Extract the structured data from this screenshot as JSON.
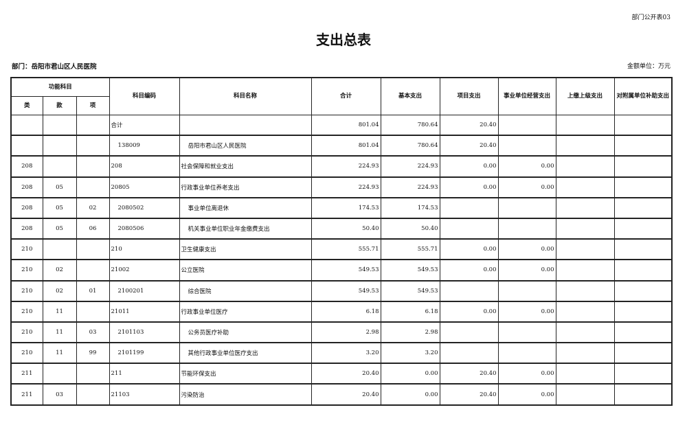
{
  "form_number": "部门公开表03",
  "title": "支出总表",
  "department": "部门：岳阳市君山区人民医院",
  "unit": "金额单位：万元",
  "headers": {
    "function_subject": "功能科目",
    "lei": "类",
    "kuan": "款",
    "xiang": "项",
    "code": "科目编码",
    "name": "科目名称",
    "total": "合计",
    "basic": "基本支出",
    "project": "项目支出",
    "business": "事业单位经营支出",
    "upper": "上缴上级支出",
    "subsidy": "对附属单位补助支出"
  },
  "rows": [
    {
      "lei": "",
      "kuan": "",
      "xiang": "",
      "code": "合计",
      "name": "",
      "total": "801.04",
      "basic": "780.64",
      "project": "20.40",
      "business": "",
      "upper": "",
      "subsidy": "",
      "level": 0
    },
    {
      "lei": "",
      "kuan": "",
      "xiang": "",
      "code": "138009",
      "name": "岳阳市君山区人民医院",
      "total": "801.04",
      "basic": "780.64",
      "project": "20.40",
      "business": "",
      "upper": "",
      "subsidy": "",
      "level": 1
    },
    {
      "lei": "208",
      "kuan": "",
      "xiang": "",
      "code": "208",
      "name": "社会保障和就业支出",
      "total": "224.93",
      "basic": "224.93",
      "project": "0.00",
      "business": "0.00",
      "upper": "",
      "subsidy": "",
      "level": 0
    },
    {
      "lei": "208",
      "kuan": "05",
      "xiang": "",
      "code": "20805",
      "name": "行政事业单位养老支出",
      "total": "224.93",
      "basic": "224.93",
      "project": "0.00",
      "business": "0.00",
      "upper": "",
      "subsidy": "",
      "level": 0
    },
    {
      "lei": "208",
      "kuan": "05",
      "xiang": "02",
      "code": "2080502",
      "name": "事业单位离退休",
      "total": "174.53",
      "basic": "174.53",
      "project": "",
      "business": "",
      "upper": "",
      "subsidy": "",
      "level": 2
    },
    {
      "lei": "208",
      "kuan": "05",
      "xiang": "06",
      "code": "2080506",
      "name": "机关事业单位职业年金缴费支出",
      "total": "50.40",
      "basic": "50.40",
      "project": "",
      "business": "",
      "upper": "",
      "subsidy": "",
      "level": 2
    },
    {
      "lei": "210",
      "kuan": "",
      "xiang": "",
      "code": "210",
      "name": "卫生健康支出",
      "total": "555.71",
      "basic": "555.71",
      "project": "0.00",
      "business": "0.00",
      "upper": "",
      "subsidy": "",
      "level": 0
    },
    {
      "lei": "210",
      "kuan": "02",
      "xiang": "",
      "code": "21002",
      "name": "公立医院",
      "total": "549.53",
      "basic": "549.53",
      "project": "0.00",
      "business": "0.00",
      "upper": "",
      "subsidy": "",
      "level": 0
    },
    {
      "lei": "210",
      "kuan": "02",
      "xiang": "01",
      "code": "2100201",
      "name": "综合医院",
      "total": "549.53",
      "basic": "549.53",
      "project": "",
      "business": "",
      "upper": "",
      "subsidy": "",
      "level": 2
    },
    {
      "lei": "210",
      "kuan": "11",
      "xiang": "",
      "code": "21011",
      "name": "行政事业单位医疗",
      "total": "6.18",
      "basic": "6.18",
      "project": "0.00",
      "business": "0.00",
      "upper": "",
      "subsidy": "",
      "level": 0
    },
    {
      "lei": "210",
      "kuan": "11",
      "xiang": "03",
      "code": "2101103",
      "name": "公务员医疗补助",
      "total": "2.98",
      "basic": "2.98",
      "project": "",
      "business": "",
      "upper": "",
      "subsidy": "",
      "level": 2
    },
    {
      "lei": "210",
      "kuan": "11",
      "xiang": "99",
      "code": "2101199",
      "name": "其他行政事业单位医疗支出",
      "total": "3.20",
      "basic": "3.20",
      "project": "",
      "business": "",
      "upper": "",
      "subsidy": "",
      "level": 2
    },
    {
      "lei": "211",
      "kuan": "",
      "xiang": "",
      "code": "211",
      "name": "节能环保支出",
      "total": "20.40",
      "basic": "0.00",
      "project": "20.40",
      "business": "0.00",
      "upper": "",
      "subsidy": "",
      "level": 0
    },
    {
      "lei": "211",
      "kuan": "03",
      "xiang": "",
      "code": "21103",
      "name": "污染防治",
      "total": "20.40",
      "basic": "0.00",
      "project": "20.40",
      "business": "0.00",
      "upper": "",
      "subsidy": "",
      "level": 0
    }
  ]
}
